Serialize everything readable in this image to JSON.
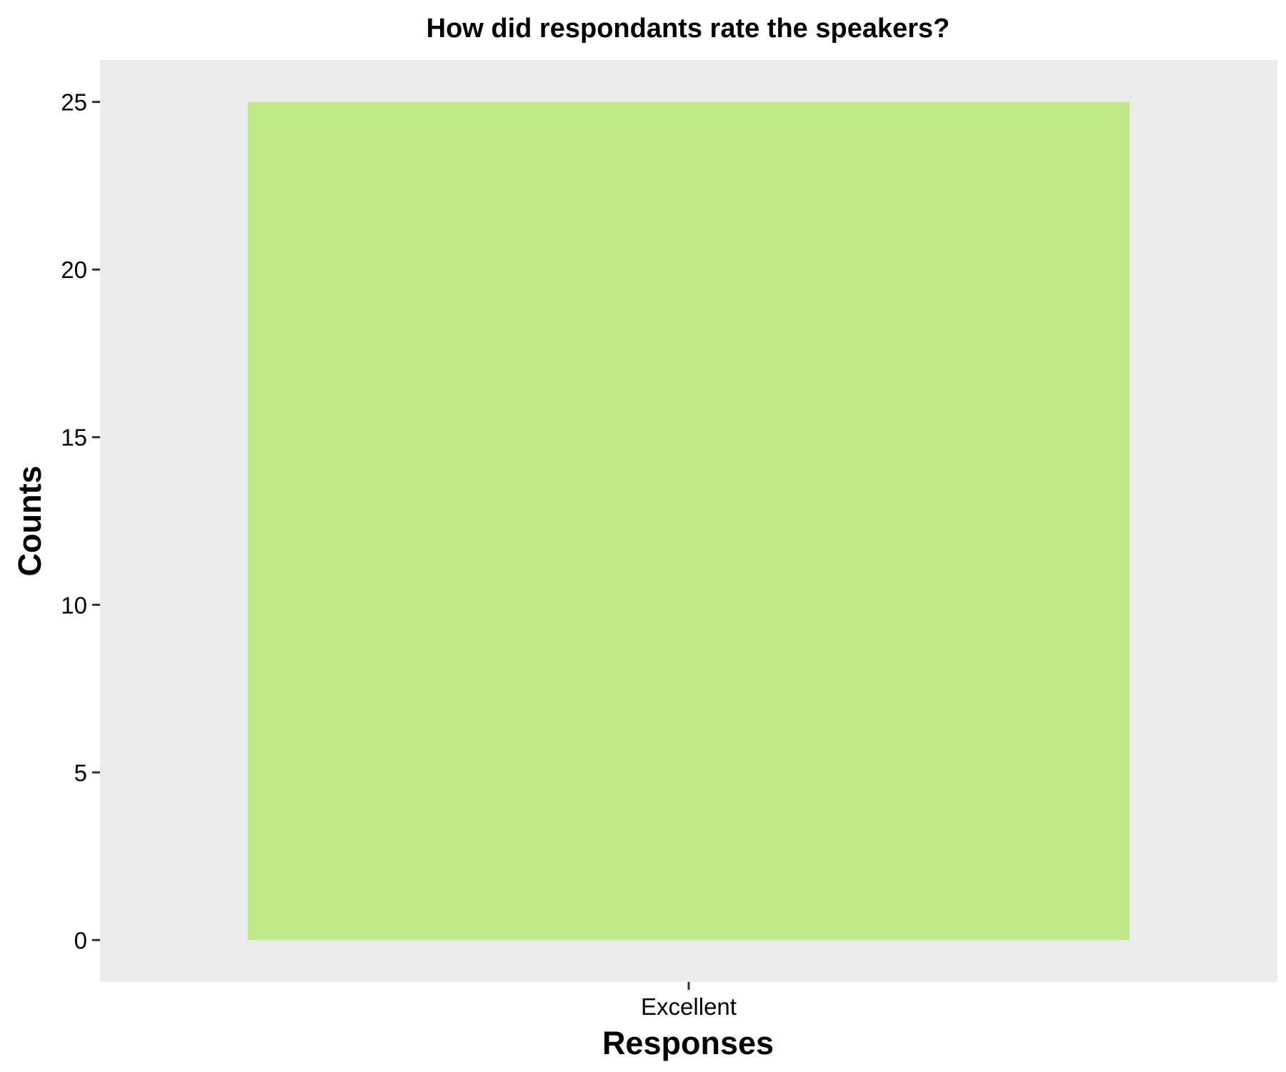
{
  "chart_data": {
    "type": "bar",
    "title": "How did respondants rate the speakers?",
    "xlabel": "Responses",
    "ylabel": "Counts",
    "categories": [
      "Excellent"
    ],
    "values": [
      25
    ],
    "ylim": [
      -1.25,
      26.25
    ],
    "yticks": [
      0,
      5,
      10,
      15,
      20,
      25
    ],
    "grid": false,
    "legend": "none",
    "colors": {
      "bar": "#bfe887",
      "panel_background": "#ebebeb"
    }
  }
}
